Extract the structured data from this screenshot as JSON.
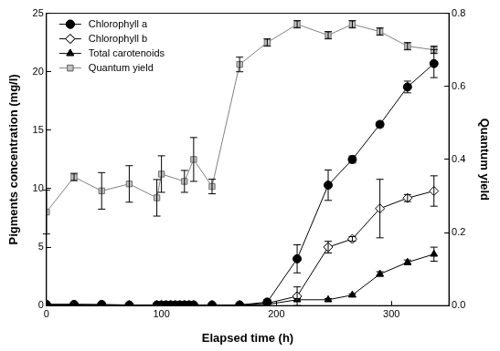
{
  "chart_data": {
    "type": "line",
    "x_label": "Elapsed time (h)",
    "y_label": "Pigments concentration (mg/l)",
    "y2_label": "Quantum yield",
    "xlim": [
      0,
      350
    ],
    "xticks": [
      0,
      100,
      200,
      300
    ],
    "ylim": [
      0,
      25
    ],
    "yticks": [
      0,
      5,
      10,
      15,
      20,
      25
    ],
    "y2lim": [
      0,
      0.8
    ],
    "y2ticks": [
      {
        "value": 0,
        "label": "0.0"
      },
      0.2,
      0.4,
      0.6,
      0.8
    ],
    "grid": false,
    "legend": "upper left",
    "series": [
      {
        "name": "Chlorophyll a",
        "color": "#000000",
        "marker": "circle",
        "fill": "#000000",
        "line_style": "solid",
        "x": [
          0,
          24,
          48,
          72,
          96,
          100,
          104,
          108,
          112,
          116,
          120,
          124,
          128,
          144,
          168,
          192,
          218,
          245,
          266,
          290,
          314,
          337
        ],
        "values": [
          0.1,
          0.1,
          0.1,
          0.05,
          0.05,
          0.05,
          0.05,
          0.05,
          0.05,
          0.05,
          0.05,
          0.05,
          0.05,
          0.05,
          0.05,
          0.3,
          4.0,
          10.3,
          12.5,
          15.5,
          18.7,
          20.7
        ],
        "errors": [
          0,
          0,
          0,
          0,
          0,
          0,
          0,
          0,
          0,
          0,
          0,
          0,
          0,
          0,
          0,
          0.2,
          1.2,
          1.3,
          0.3,
          0.2,
          0.5,
          1.2
        ]
      },
      {
        "name": "Chlorophyll b",
        "color": "#000000",
        "marker": "diamond",
        "fill": "#ffffff",
        "line_style": "solid",
        "x": [
          0,
          24,
          48,
          72,
          96,
          100,
          104,
          108,
          112,
          116,
          120,
          124,
          128,
          144,
          168,
          192,
          218,
          245,
          266,
          290,
          314,
          337
        ],
        "values": [
          0.1,
          0.1,
          0.05,
          0.05,
          0.05,
          0.05,
          0.05,
          0.05,
          0.05,
          0.05,
          0.05,
          0.05,
          0.05,
          0.05,
          0.05,
          0.2,
          0.8,
          5.0,
          5.7,
          8.3,
          9.2,
          9.8
        ],
        "errors": [
          0,
          0,
          0,
          0,
          0,
          0,
          0,
          0,
          0,
          0,
          0,
          0,
          0,
          0,
          0,
          0.1,
          0.8,
          0.5,
          0.2,
          2.5,
          0.3,
          1.3
        ]
      },
      {
        "name": "Total carotenoids",
        "color": "#000000",
        "marker": "triangle",
        "fill": "#000000",
        "line_style": "solid",
        "x": [
          0,
          24,
          48,
          72,
          96,
          100,
          104,
          108,
          112,
          116,
          120,
          124,
          128,
          144,
          168,
          192,
          218,
          245,
          266,
          290,
          314,
          337
        ],
        "values": [
          0.05,
          0.05,
          0.05,
          0.05,
          0.05,
          0.05,
          0.05,
          0.05,
          0.05,
          0.05,
          0.05,
          0.05,
          0.05,
          0.05,
          0.05,
          0.1,
          0.5,
          0.5,
          0.9,
          2.7,
          3.7,
          4.4
        ],
        "errors": [
          0,
          0,
          0,
          0,
          0,
          0,
          0,
          0,
          0,
          0,
          0,
          0,
          0,
          0,
          0,
          0,
          0.1,
          0.1,
          0.1,
          0.2,
          0.2,
          0.6
        ]
      },
      {
        "name": "Quantum yield",
        "color": "#808080",
        "marker": "square",
        "fill": "#c0c0c0",
        "line_style": "solid",
        "axis": "y2",
        "x": [
          0,
          24,
          48,
          72,
          96,
          100,
          120,
          128,
          144,
          168,
          192,
          218,
          245,
          266,
          290,
          314,
          337
        ],
        "values": [
          0.256,
          0.352,
          0.314,
          0.333,
          0.295,
          0.36,
          0.34,
          0.4,
          0.326,
          0.66,
          0.72,
          0.77,
          0.74,
          0.77,
          0.75,
          0.71,
          0.7
        ],
        "errors": [
          0.06,
          0.01,
          0.05,
          0.05,
          0.05,
          0.05,
          0.03,
          0.06,
          0.02,
          0.02,
          0.01,
          0.01,
          0.01,
          0.01,
          0.01,
          0.01,
          0.01
        ]
      }
    ]
  }
}
